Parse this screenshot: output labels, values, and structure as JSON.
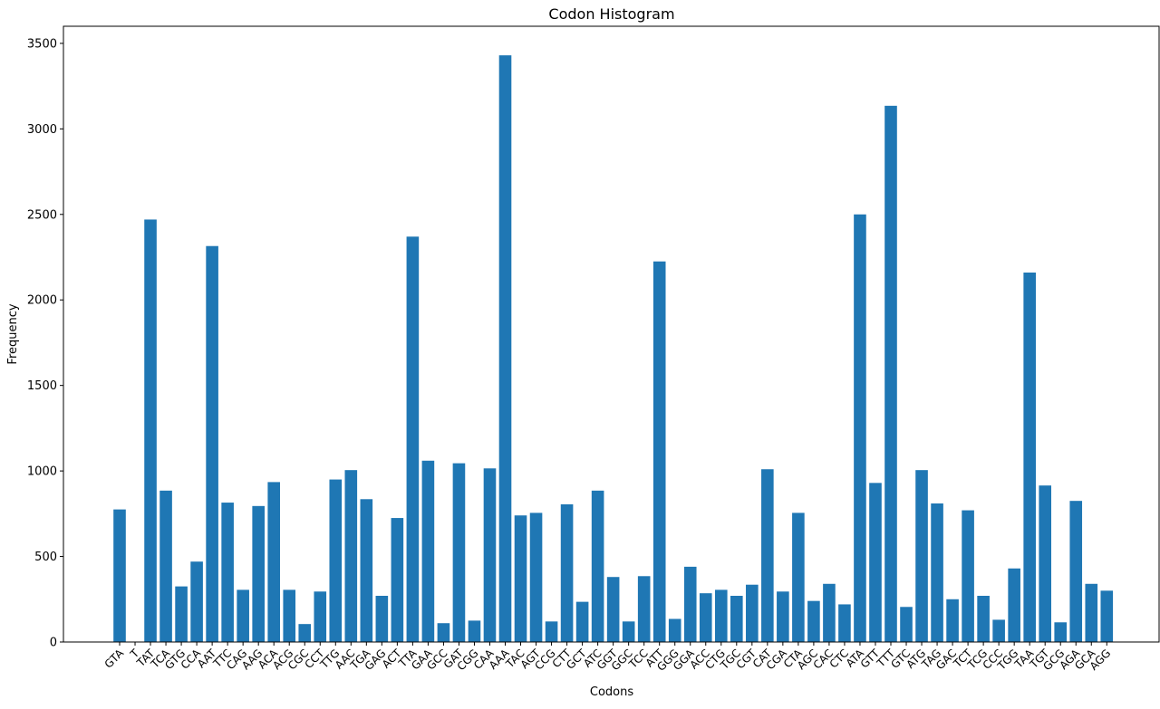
{
  "chart_data": {
    "type": "bar",
    "title": "Codon Histogram",
    "xlabel": "Codons",
    "ylabel": "Frequency",
    "ylim": [
      0,
      3600
    ],
    "yticks": [
      0,
      500,
      1000,
      1500,
      2000,
      2500,
      3000,
      3500
    ],
    "grid": false,
    "bar_color": "#1f77b4",
    "categories": [
      "GTA",
      "T",
      "TAT",
      "TCA",
      "GTG",
      "CCA",
      "AAT",
      "TTC",
      "CAG",
      "AAG",
      "ACA",
      "ACG",
      "CGC",
      "CCT",
      "TTG",
      "AAC",
      "TGA",
      "GAG",
      "ACT",
      "TTA",
      "GAA",
      "GCC",
      "GAT",
      "CGG",
      "CAA",
      "AAA",
      "TAC",
      "AGT",
      "CCG",
      "CTT",
      "GCT",
      "ATC",
      "GGT",
      "GGC",
      "TCC",
      "ATT",
      "GGG",
      "GGA",
      "ACC",
      "CTG",
      "TGC",
      "CGT",
      "CAT",
      "CGA",
      "CTA",
      "AGC",
      "CAC",
      "CTC",
      "ATA",
      "GTT",
      "TTT",
      "GTC",
      "ATG",
      "TAG",
      "GAC",
      "TCT",
      "TCG",
      "CCC",
      "TGG",
      "TAA",
      "TGT",
      "GCG",
      "AGA",
      "GCA",
      "AGG"
    ],
    "values": [
      775,
      0,
      2470,
      885,
      325,
      470,
      2315,
      815,
      305,
      795,
      935,
      305,
      105,
      295,
      950,
      1005,
      835,
      270,
      725,
      2370,
      1060,
      110,
      1045,
      125,
      1015,
      3430,
      740,
      755,
      120,
      805,
      235,
      885,
      380,
      120,
      385,
      2225,
      135,
      440,
      285,
      305,
      270,
      335,
      1010,
      295,
      755,
      240,
      340,
      220,
      2500,
      930,
      3135,
      205,
      1005,
      810,
      250,
      770,
      270,
      130,
      430,
      2160,
      915,
      115,
      825,
      340,
      300
    ]
  }
}
